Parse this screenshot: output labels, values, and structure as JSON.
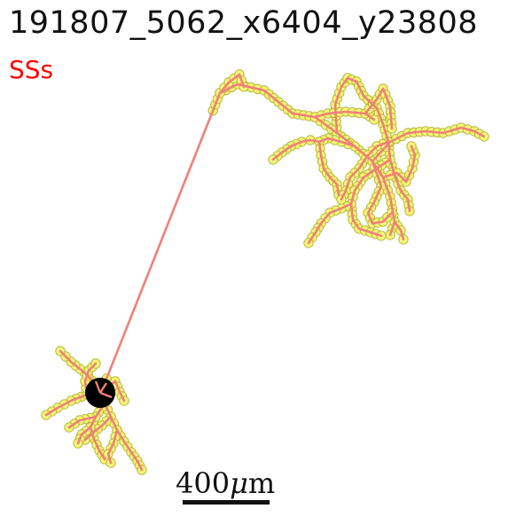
{
  "header": {
    "title": "191807_5062_x6404_y23808",
    "cell_type": "SSs"
  },
  "scale_bar": {
    "value": "400",
    "unit_prefix": "μ",
    "unit": "m"
  },
  "colors": {
    "cell_type": "#ff0000",
    "trace": "#f08078",
    "node_fill": "#f5f57a",
    "node_stroke": "#b8b83a",
    "soma": "#000000",
    "text": "#111111"
  }
}
